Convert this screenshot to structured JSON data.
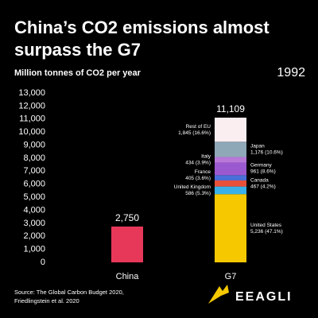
{
  "chart_data": {
    "type": "stacked_bar",
    "title": [
      "China’s CO2 emissions almost",
      "surpass the G7"
    ],
    "subtitle": "Million tonnes of CO2 per year",
    "year": "1992",
    "categories": [
      "China",
      "G7"
    ],
    "ylim": [
      0,
      13000
    ],
    "yticks": [
      0,
      {
        "value": 1000,
        "label": "1,000"
      },
      {
        "value": 2000,
        "label": "2,000"
      },
      {
        "value": 3000,
        "label": "3,000"
      },
      {
        "value": 4000,
        "label": "4,000"
      },
      {
        "value": 5000,
        "label": "5,000"
      },
      {
        "value": 6000,
        "label": "6,000"
      },
      {
        "value": 7000,
        "label": "7,000"
      },
      {
        "value": 8000,
        "label": "8,000"
      },
      {
        "value": 9000,
        "label": "9,000"
      },
      {
        "value": 10000,
        "label": "10,000"
      },
      {
        "value": 11000,
        "label": "11,000"
      },
      {
        "value": 12000,
        "label": "12,000"
      },
      {
        "value": 13000,
        "label": "13,000"
      }
    ],
    "series": [
      {
        "color": "#e8385a",
        "values": [
          2750,
          null
        ],
        "value_labels": [
          "2,750",
          null
        ]
      },
      {
        "name": "United States",
        "color": "#f5c800",
        "values": [
          null,
          5236
        ],
        "value_labels": [
          null,
          "5,236 (47.1%)"
        ]
      },
      {
        "name": "United Kingdom",
        "color": "#3bb0e8",
        "values": [
          null,
          586
        ],
        "value_labels": [
          null,
          "586 (5.3%)"
        ]
      },
      {
        "name": "Canada",
        "color": "#e8503a",
        "values": [
          null,
          467
        ],
        "value_labels": [
          null,
          "467 (4.2%)"
        ]
      },
      {
        "name": "France",
        "color": "#4a6fd8",
        "values": [
          null,
          405
        ],
        "value_labels": [
          null,
          "405 (3.6%)"
        ]
      },
      {
        "name": "Germany",
        "color": "#9b59d0",
        "values": [
          null,
          961
        ],
        "value_labels": [
          null,
          "961 (8.6%)"
        ]
      },
      {
        "name": "Italy",
        "color": "#b878d8",
        "values": [
          null,
          434
        ],
        "value_labels": [
          null,
          "434 (3.9%)"
        ]
      },
      {
        "name": "Japan",
        "color": "#8fa8b8",
        "values": [
          null,
          1176
        ],
        "value_labels": [
          null,
          "1,176 (10.6%)"
        ]
      },
      {
        "name": "Rest of EU",
        "color": "#fbeef0",
        "values": [
          null,
          1845
        ],
        "value_labels": [
          null,
          "1,845 (16.6%)"
        ]
      }
    ],
    "totals": [
      null,
      11109
    ],
    "total_labels": [
      null,
      "11,109"
    ],
    "source": [
      "Source: The Global Carbon Budget 2020,",
      "Friedlingstein et al. 2020"
    ],
    "logo": "EEAGLI"
  }
}
